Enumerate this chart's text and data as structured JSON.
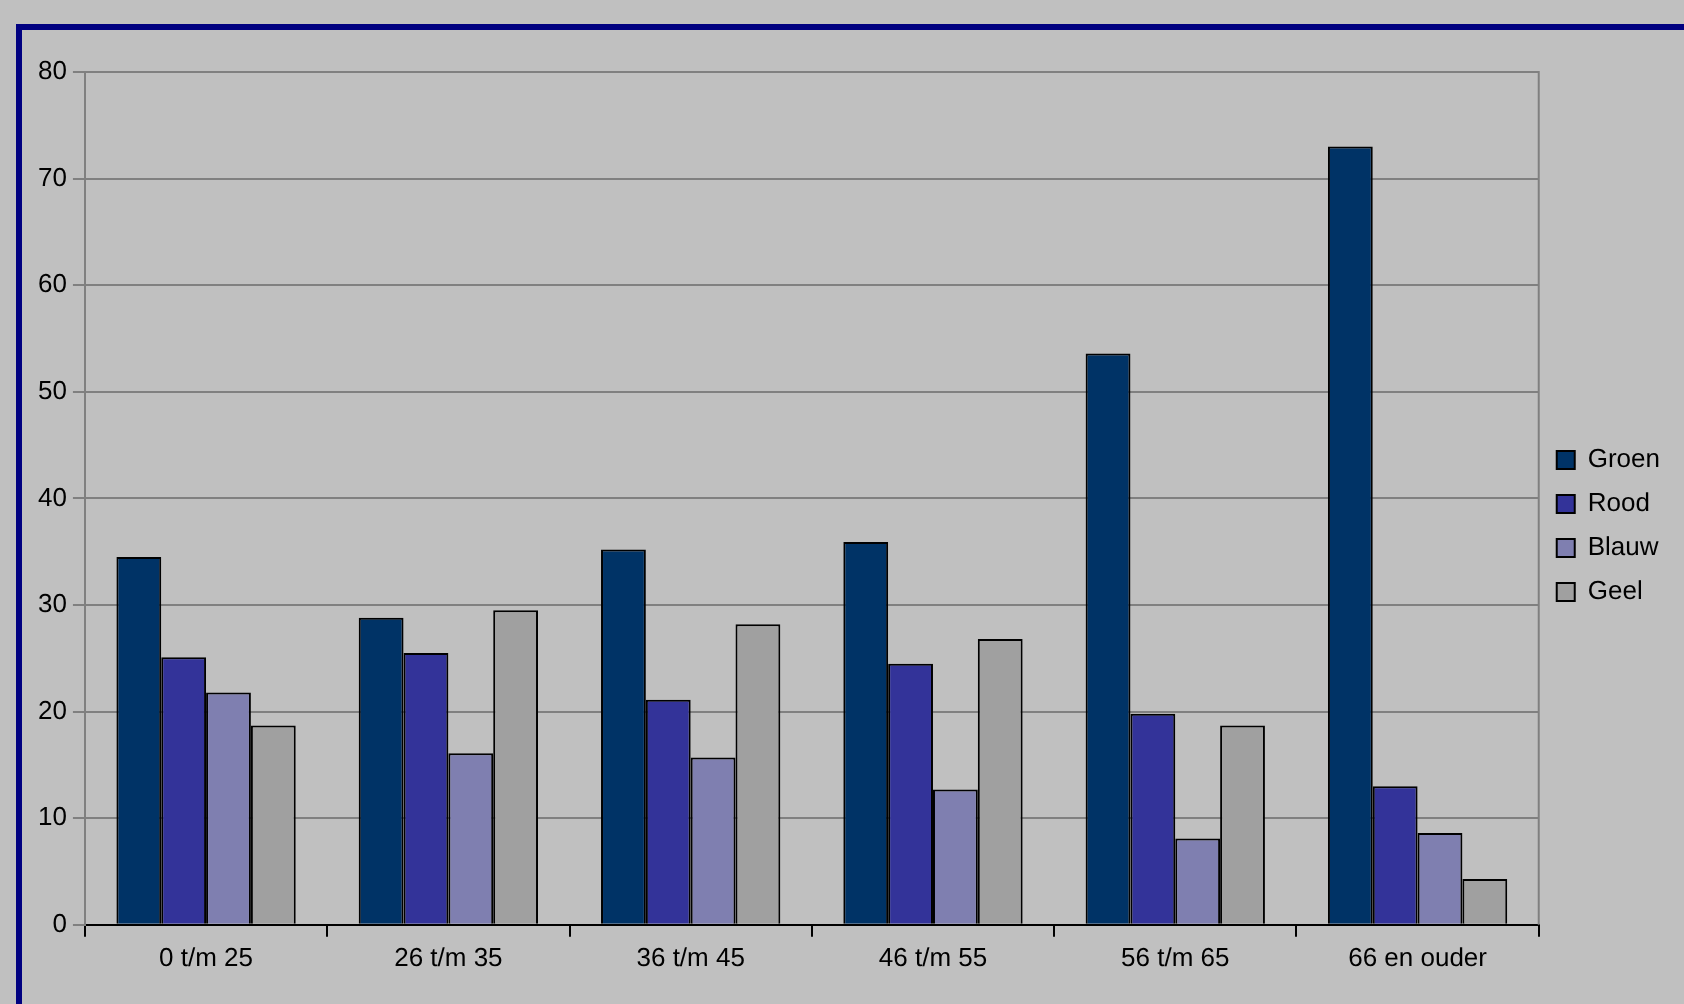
{
  "chart_data": {
    "type": "bar",
    "categories": [
      "0 t/m 25",
      "26 t/m 35",
      "36 t/m 45",
      "46 t/m 55",
      "56 t/m 65",
      "66 en ouder"
    ],
    "series": [
      {
        "name": "Groen",
        "color": "#003366",
        "values": [
          34.5,
          28.8,
          35.2,
          35.9,
          53.6,
          73.0
        ]
      },
      {
        "name": "Rood",
        "color": "#333399",
        "values": [
          25.1,
          25.5,
          21.1,
          24.5,
          19.8,
          13.0
        ]
      },
      {
        "name": "Blauw",
        "color": "#7f7fb0",
        "values": [
          21.8,
          16.1,
          15.7,
          12.7,
          8.1,
          8.6
        ]
      },
      {
        "name": "Geel",
        "color": "#a0a0a0",
        "values": [
          18.7,
          29.5,
          28.2,
          26.8,
          18.7,
          4.3
        ]
      }
    ],
    "ylim": [
      0,
      80
    ],
    "yticks": [
      0,
      10,
      20,
      30,
      40,
      50,
      60,
      70,
      80
    ],
    "grid": "y",
    "legend": "right"
  }
}
